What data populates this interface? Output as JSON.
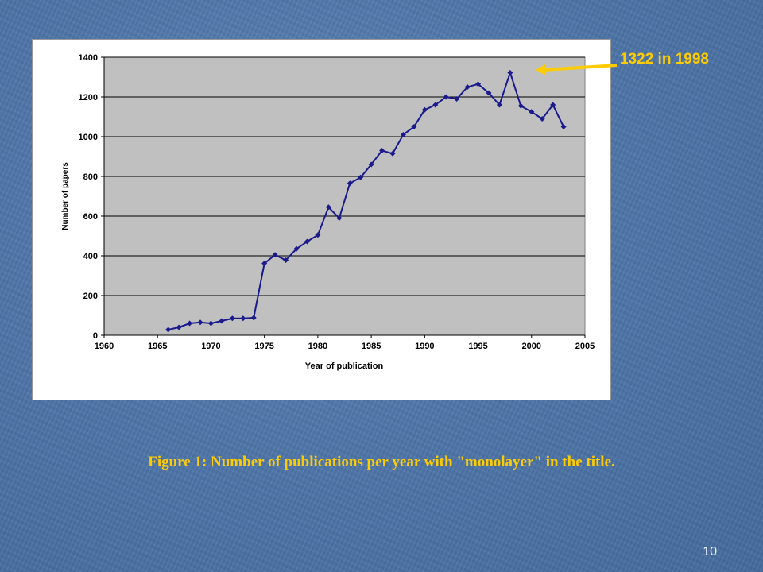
{
  "slide": {
    "callout": "1322 in 1998",
    "caption": "Figure 1: Number of publications per year with \"monolayer\" in the title.",
    "page_number": "10"
  },
  "colors": {
    "line": "#1a1a8c",
    "plot_bg": "#c0c0c0",
    "accent": "#ffcc00"
  },
  "chart_data": {
    "type": "line",
    "title": "",
    "xlabel": "Year of publication",
    "ylabel": "Number of papers",
    "xlim": [
      1960,
      2005
    ],
    "ylim": [
      0,
      1400
    ],
    "xticks": [
      1960,
      1965,
      1970,
      1975,
      1980,
      1985,
      1990,
      1995,
      2000,
      2005
    ],
    "yticks": [
      0,
      200,
      400,
      600,
      800,
      1000,
      1200,
      1400
    ],
    "grid": "horizontal",
    "legend": "none",
    "series": [
      {
        "x": [
          1966,
          1967,
          1968,
          1969,
          1970,
          1971,
          1972,
          1973,
          1974,
          1975,
          1976,
          1977,
          1978,
          1979,
          1980,
          1981,
          1982,
          1983,
          1984,
          1985,
          1986,
          1987,
          1988,
          1989,
          1990,
          1991,
          1992,
          1993,
          1994,
          1995,
          1996,
          1997,
          1998,
          1999,
          2000,
          2001,
          2002,
          2003
        ],
        "values": [
          28,
          40,
          60,
          65,
          60,
          72,
          85,
          85,
          88,
          362,
          405,
          378,
          435,
          472,
          505,
          645,
          590,
          765,
          795,
          860,
          930,
          915,
          1010,
          1050,
          1135,
          1160,
          1200,
          1190,
          1250,
          1265,
          1220,
          1160,
          1322,
          1155,
          1125,
          1090,
          1160,
          1050
        ]
      }
    ]
  }
}
